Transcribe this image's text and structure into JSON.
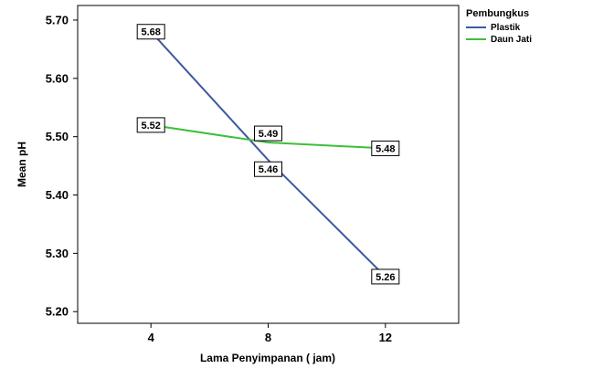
{
  "chart_data": {
    "type": "line",
    "title": "",
    "xlabel": "Lama Penyimpanan ( jam)",
    "ylabel": "Mean pH",
    "x": [
      4,
      8,
      12
    ],
    "x_tick_labels": [
      "4",
      "8",
      "12"
    ],
    "y_ticks": [
      5.2,
      5.3,
      5.4,
      5.5,
      5.6,
      5.7
    ],
    "y_tick_labels": [
      "5.20",
      "5.30",
      "5.40",
      "5.50",
      "5.60",
      "5.70"
    ],
    "ylim": [
      5.18,
      5.725
    ],
    "xlim": [
      1.5,
      14.5
    ],
    "grid": false,
    "legend": {
      "title": "Pembungkus",
      "placement": "outside-right-top"
    },
    "series": [
      {
        "name": "Plastik",
        "color": "#3d5a9e",
        "values": [
          5.68,
          5.46,
          5.26
        ],
        "labels": [
          "5.68",
          "5.46",
          "5.26"
        ]
      },
      {
        "name": "Daun Jati",
        "color": "#3cbf3c",
        "values": [
          5.52,
          5.49,
          5.48
        ],
        "labels": [
          "5.52",
          "5.49",
          "5.48"
        ]
      }
    ]
  }
}
